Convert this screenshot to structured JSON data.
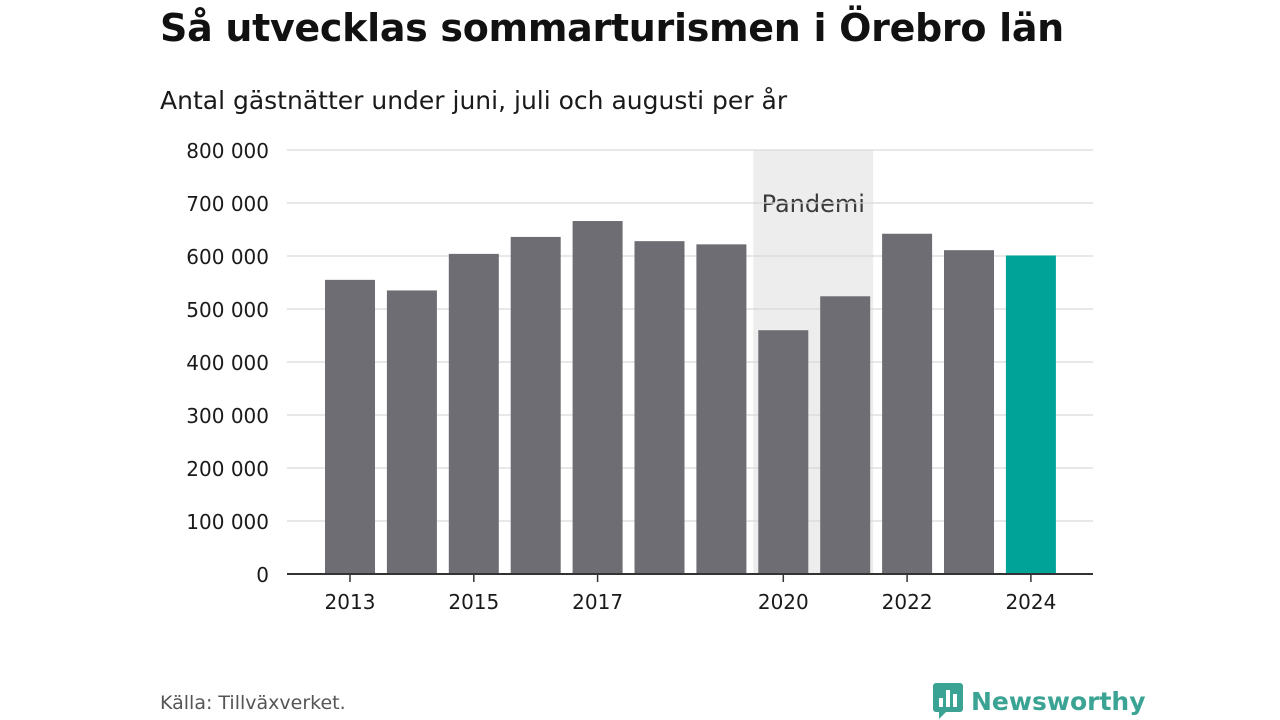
{
  "header": {
    "title": "Så utvecklas sommarturismen i Örebro län",
    "subtitle": "Antal gästnätter under juni, juli och augusti per år"
  },
  "footer": {
    "source": "Källa: Tillväxverket.",
    "brand": "Newsworthy"
  },
  "colors": {
    "bar": "#6e6d73",
    "highlight": "#00a398",
    "band": "#ededed",
    "grid": "#d9d9d9",
    "axis": "#333333",
    "brand": "#3aa394"
  },
  "icons": {
    "brand_logo": "newsworthy-logo-icon"
  },
  "chart_data": {
    "type": "bar",
    "title": "Så utvecklas sommarturismen i Örebro län",
    "subtitle": "Antal gästnätter under juni, juli och augusti per år",
    "categories": [
      "2013",
      "2014",
      "2015",
      "2016",
      "2017",
      "2018",
      "2019",
      "2020",
      "2021",
      "2022",
      "2023",
      "2024"
    ],
    "values": [
      555000,
      535000,
      604000,
      636000,
      666000,
      628000,
      622000,
      460000,
      524000,
      642000,
      611000,
      601000
    ],
    "highlight_category": "2024",
    "x_tick_labels": [
      "2013",
      "2015",
      "2017",
      "2020",
      "2022",
      "2024"
    ],
    "y_ticks": [
      0,
      100000,
      200000,
      300000,
      400000,
      500000,
      600000,
      700000,
      800000
    ],
    "y_tick_labels": [
      "0",
      "100 000",
      "200 000",
      "300 000",
      "400 000",
      "500 000",
      "600 000",
      "700 000",
      "800 000"
    ],
    "ylim": [
      0,
      800000
    ],
    "grid": true,
    "annotation": {
      "label": "Pandemi",
      "from": "2020",
      "to": "2021"
    },
    "xlabel": "",
    "ylabel": ""
  }
}
